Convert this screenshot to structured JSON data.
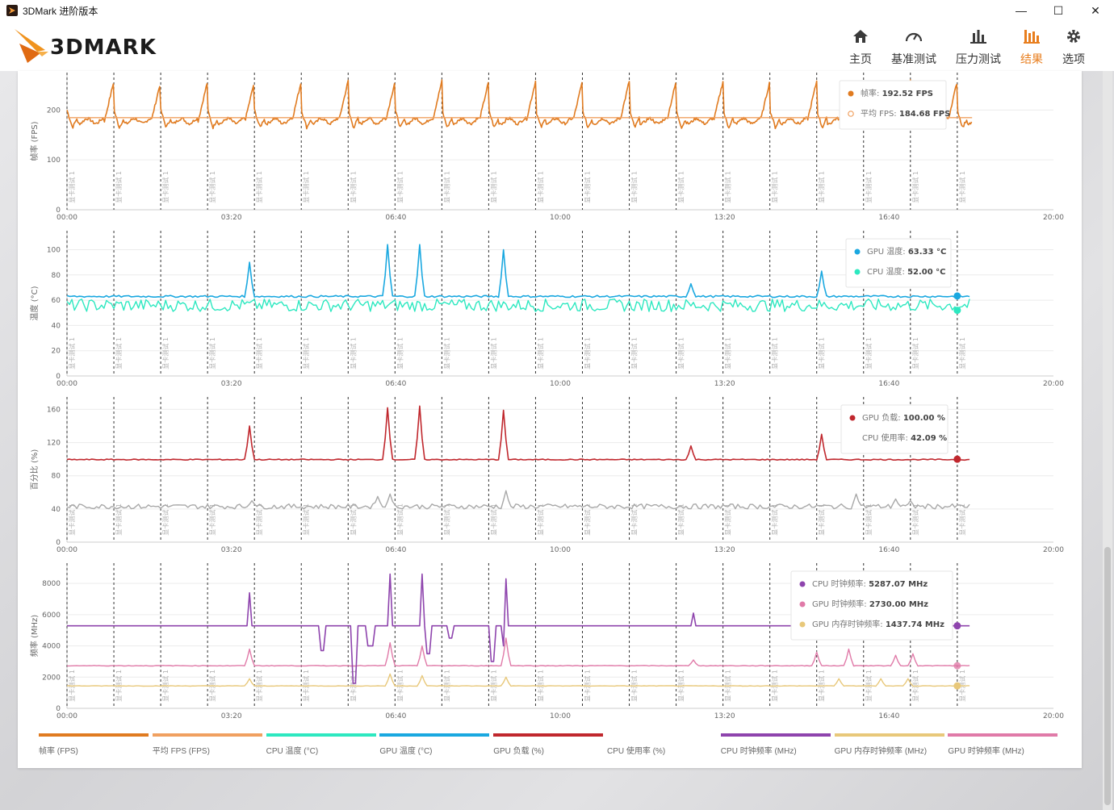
{
  "window": {
    "title": "3DMark 进阶版本",
    "min_label": "—",
    "max_label": "☐",
    "close_label": "✕"
  },
  "brand": {
    "logo_text": "3DMARK"
  },
  "nav": {
    "items": [
      {
        "label": "主页",
        "icon": "home-icon"
      },
      {
        "label": "基准测试",
        "icon": "gauge-icon"
      },
      {
        "label": "压力测试",
        "icon": "bar-chart-icon"
      },
      {
        "label": "结果",
        "icon": "results-icon",
        "active": true
      },
      {
        "label": "选项",
        "icon": "gear-icon"
      }
    ],
    "accent": "#e87e1e"
  },
  "colors": {
    "fps": "#e07b20",
    "avg_fps": "#f0a060",
    "cpu_temp": "#2de8c0",
    "gpu_temp": "#1aa8e0",
    "gpu_load": "#c0272d",
    "cpu_usage": "#a8a8a8",
    "cpu_clock": "#8e44ad",
    "gpu_mem_clock": "#e8c87a",
    "gpu_clock": "#e07aa8"
  },
  "marker_label": "显卡测试 1",
  "x_ticks": [
    "00:00",
    "03:20",
    "06:40",
    "10:00",
    "13:20",
    "16:40",
    "20:00"
  ],
  "chart_data": [
    {
      "type": "line",
      "ylabel": "帧率 (FPS)",
      "yticks": [
        0,
        100,
        200
      ],
      "ylim": [
        0,
        275
      ],
      "series": [
        {
          "name": "帧率 (FPS)",
          "pattern": "sawtooth",
          "base": 170,
          "peak": 258
        },
        {
          "name": "平均 FPS",
          "constant": 184.68
        }
      ],
      "tooltip": [
        {
          "key": "帧率",
          "value": "192.52 FPS"
        },
        {
          "key": "平均 FPS",
          "value": "184.68 FPS"
        }
      ]
    },
    {
      "type": "line",
      "ylabel": "温度 (°C)",
      "yticks": [
        0,
        20,
        40,
        60,
        80,
        100
      ],
      "ylim": [
        0,
        115
      ],
      "series": [
        {
          "name": "GPU 温度 (°C)",
          "base": 63,
          "spikes": [
            [
              3.75,
              90
            ],
            [
              6.55,
              104
            ],
            [
              7.2,
              104
            ],
            [
              8.9,
              100
            ],
            [
              12.7,
              73
            ],
            [
              15.35,
              83
            ]
          ]
        },
        {
          "name": "CPU 温度 (°C)",
          "base": 56,
          "noise": 6
        }
      ],
      "tooltip": [
        {
          "key": "GPU 温度",
          "value": "63.33 °C"
        },
        {
          "key": "CPU 温度",
          "value": "52.00 °C"
        }
      ]
    },
    {
      "type": "line",
      "ylabel": "百分比 (%)",
      "yticks": [
        0,
        40,
        80,
        120,
        160
      ],
      "ylim": [
        0,
        175
      ],
      "series": [
        {
          "name": "GPU 负载 (%)",
          "base": 100,
          "spikes": [
            [
              3.75,
              140
            ],
            [
              6.55,
              162
            ],
            [
              7.2,
              164
            ],
            [
              8.9,
              159
            ],
            [
              12.7,
              116
            ],
            [
              15.35,
              130
            ]
          ]
        },
        {
          "name": "CPU 使用率 (%)",
          "base": 43,
          "noise": 4
        }
      ],
      "tooltip": [
        {
          "key": "GPU 负载",
          "value": "100.00 %"
        },
        {
          "key": "CPU 使用率",
          "value": "42.09 %"
        }
      ]
    },
    {
      "type": "line",
      "ylabel": "频率 (MHz)",
      "yticks": [
        0,
        2000,
        4000,
        6000,
        8000
      ],
      "ylim": [
        0,
        9300
      ],
      "series": [
        {
          "name": "CPU 时钟频率 (MHz)",
          "base": 5287
        },
        {
          "name": "GPU 时钟频率 (MHz)",
          "base": 2730
        },
        {
          "name": "GPU 内存时钟频率 (MHz)",
          "base": 1437
        }
      ],
      "tooltip": [
        {
          "key": "CPU 时钟频率",
          "value": "5287.07 MHz"
        },
        {
          "key": "GPU 时钟频率",
          "value": "2730.00 MHz"
        },
        {
          "key": "GPU 内存时钟频率",
          "value": "1437.74 MHz"
        }
      ]
    }
  ],
  "legend": [
    {
      "label": "帧率 (FPS)",
      "color": "#e07b20"
    },
    {
      "label": "平均 FPS (FPS)",
      "color": "#f0a060"
    },
    {
      "label": "CPU 温度 (°C)",
      "color": "#2de8c0"
    },
    {
      "label": "GPU 温度 (°C)",
      "color": "#1aa8e0"
    },
    {
      "label": "GPU 负载 (%)",
      "color": "#c0272d"
    },
    {
      "label": "CPU 使用率 (%)",
      "color": ""
    },
    {
      "label": "CPU 时钟频率 (MHz)",
      "color": "#8e44ad"
    },
    {
      "label": "GPU 内存时钟频率 (MHz)",
      "color": "#e8c87a"
    },
    {
      "label": "GPU 时钟频率 (MHz)",
      "color": "#e07aa8"
    }
  ]
}
